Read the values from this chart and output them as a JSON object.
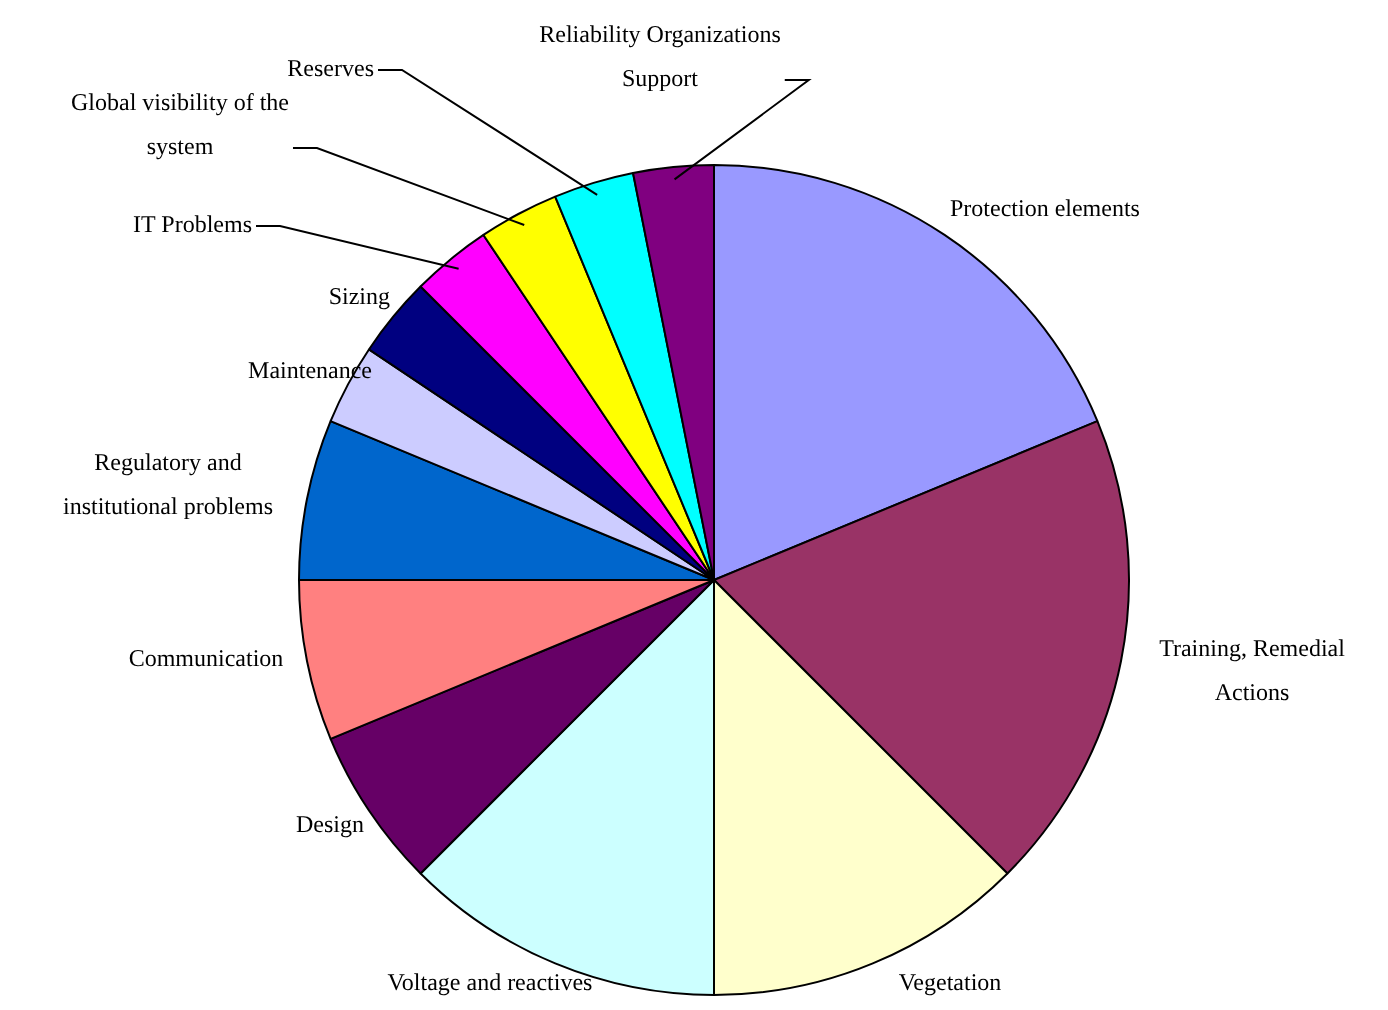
{
  "chart_data": {
    "type": "pie",
    "categories": [
      "Protection elements",
      "Training, Remedial Actions",
      "Vegetation",
      "Voltage and reactives",
      "Design",
      "Communication",
      "Regulatory and institutional problems",
      "Maintenance",
      "Sizing",
      "IT Problems",
      "Global visibility of the system",
      "Reserves",
      "Reliability Organizations Support"
    ],
    "values": [
      18.75,
      18.75,
      12.5,
      12.5,
      6.25,
      6.25,
      6.25,
      3.125,
      3.125,
      3.125,
      3.125,
      3.125,
      3.125
    ],
    "colors": [
      "#9999ff",
      "#993366",
      "#ffffcc",
      "#ccffff",
      "#660066",
      "#ff8080",
      "#0066cc",
      "#ccccff",
      "#000080",
      "#ff00ff",
      "#ffff00",
      "#00ffff",
      "#800080"
    ],
    "legend": false
  }
}
